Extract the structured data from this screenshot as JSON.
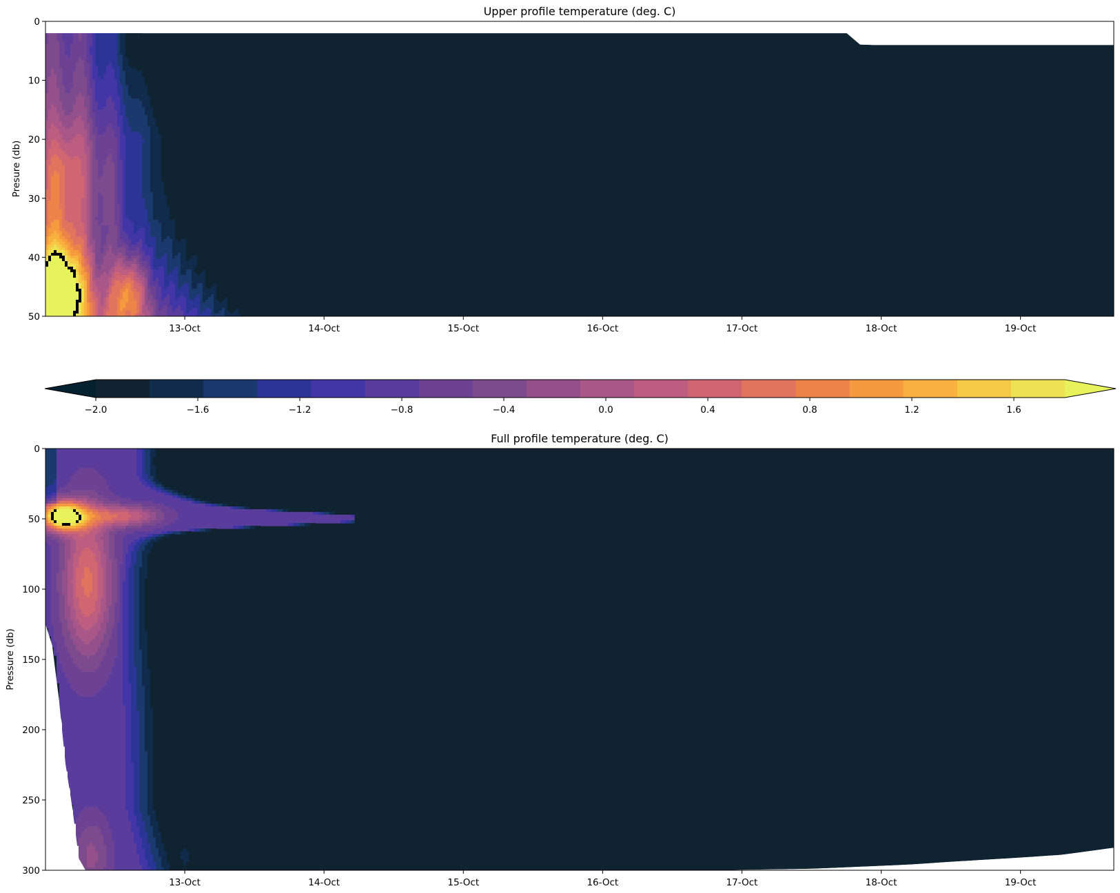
{
  "chart_data": [
    {
      "type": "heatmap",
      "subtype": "filled-contour",
      "title": "Upper profile temperature (deg. C)",
      "xlabel": "",
      "ylabel": "Presure (db)",
      "ylim": [
        50,
        0
      ],
      "y_inverted": true,
      "yticks": [
        0,
        10,
        20,
        30,
        40,
        50
      ],
      "x_start_day": 12.0,
      "x_end_day": 19.67,
      "xticks": [
        {
          "day": 13,
          "label": "13-Oct"
        },
        {
          "day": 14,
          "label": "14-Oct"
        },
        {
          "day": 15,
          "label": "15-Oct"
        },
        {
          "day": 16,
          "label": "16-Oct"
        },
        {
          "day": 17,
          "label": "17-Oct"
        },
        {
          "day": 18,
          "label": "18-Oct"
        },
        {
          "day": 19,
          "label": "19-Oct"
        }
      ],
      "background_value": -2.0,
      "data_top_pressure": [
        {
          "day": 12.0,
          "p": 2
        },
        {
          "day": 17.8,
          "p": 2
        },
        {
          "day": 17.85,
          "p": 4
        },
        {
          "day": 19.67,
          "p": 4
        }
      ],
      "features": [
        {
          "name": "warm core",
          "day": 12.1,
          "p": 46,
          "value": 1.6
        },
        {
          "name": "secondary warm",
          "day": 12.6,
          "p": 46,
          "value": 0.6
        }
      ]
    },
    {
      "type": "heatmap",
      "subtype": "filled-contour",
      "title": "Full profile temperature (deg. C)",
      "xlabel": "",
      "ylabel": "Pressure (db)",
      "ylim": [
        300,
        0
      ],
      "y_inverted": true,
      "yticks": [
        0,
        50,
        100,
        150,
        200,
        250,
        300
      ],
      "x_start_day": 12.0,
      "x_end_day": 19.67,
      "xticks": [
        {
          "day": 13,
          "label": "13-Oct"
        },
        {
          "day": 14,
          "label": "14-Oct"
        },
        {
          "day": 15,
          "label": "15-Oct"
        },
        {
          "day": 16,
          "label": "16-Oct"
        },
        {
          "day": 17,
          "label": "17-Oct"
        },
        {
          "day": 18,
          "label": "18-Oct"
        },
        {
          "day": 19,
          "label": "19-Oct"
        }
      ],
      "background_value": -2.0,
      "data_bottom_pressure": [
        {
          "day": 12.0,
          "p": 125
        },
        {
          "day": 12.08,
          "p": 150
        },
        {
          "day": 12.1,
          "p": 185
        },
        {
          "day": 12.15,
          "p": 230
        },
        {
          "day": 12.2,
          "p": 260
        },
        {
          "day": 12.25,
          "p": 300
        },
        {
          "day": 16.75,
          "p": 300
        },
        {
          "day": 17.5,
          "p": 299
        },
        {
          "day": 18.2,
          "p": 296
        },
        {
          "day": 18.5,
          "p": 294
        },
        {
          "day": 19.0,
          "p": 291
        },
        {
          "day": 19.3,
          "p": 289
        },
        {
          "day": 19.67,
          "p": 284
        }
      ],
      "features": [
        {
          "name": "warm core",
          "day": 12.15,
          "p": 48,
          "value": 1.6
        },
        {
          "name": "warm tongue",
          "day": 12.35,
          "p": 100,
          "value": 0.4
        }
      ]
    }
  ],
  "colorbar": {
    "levels": [
      -2.0,
      -1.8,
      -1.6,
      -1.4,
      -1.2,
      -1.0,
      -0.8,
      -0.6,
      -0.4,
      -0.2,
      0.0,
      0.2,
      0.4,
      0.6,
      0.8,
      1.0,
      1.2,
      1.4,
      1.6,
      1.8
    ],
    "colors": [
      "#0f2331",
      "#112b4d",
      "#1a3a6e",
      "#2a3595",
      "#4135a8",
      "#5a3c9c",
      "#6d4294",
      "#7e4a8e",
      "#93508a",
      "#a85788",
      "#bd5e80",
      "#cf6672",
      "#e0745e",
      "#ec8449",
      "#f59a3e",
      "#f8b03e",
      "#f6c944",
      "#eee252"
    ],
    "under_color": "#05202f",
    "over_color": "#e8f25a",
    "extend": "both",
    "tick_values": [
      -2.0,
      -1.6,
      -1.2,
      -0.8,
      -0.4,
      0.0,
      0.4,
      0.8,
      1.2,
      1.6
    ],
    "tick_labels": [
      "−2.0",
      "−1.6",
      "−1.2",
      "−0.8",
      "−0.4",
      "0.0",
      "0.4",
      "0.8",
      "1.2",
      "1.6"
    ]
  }
}
